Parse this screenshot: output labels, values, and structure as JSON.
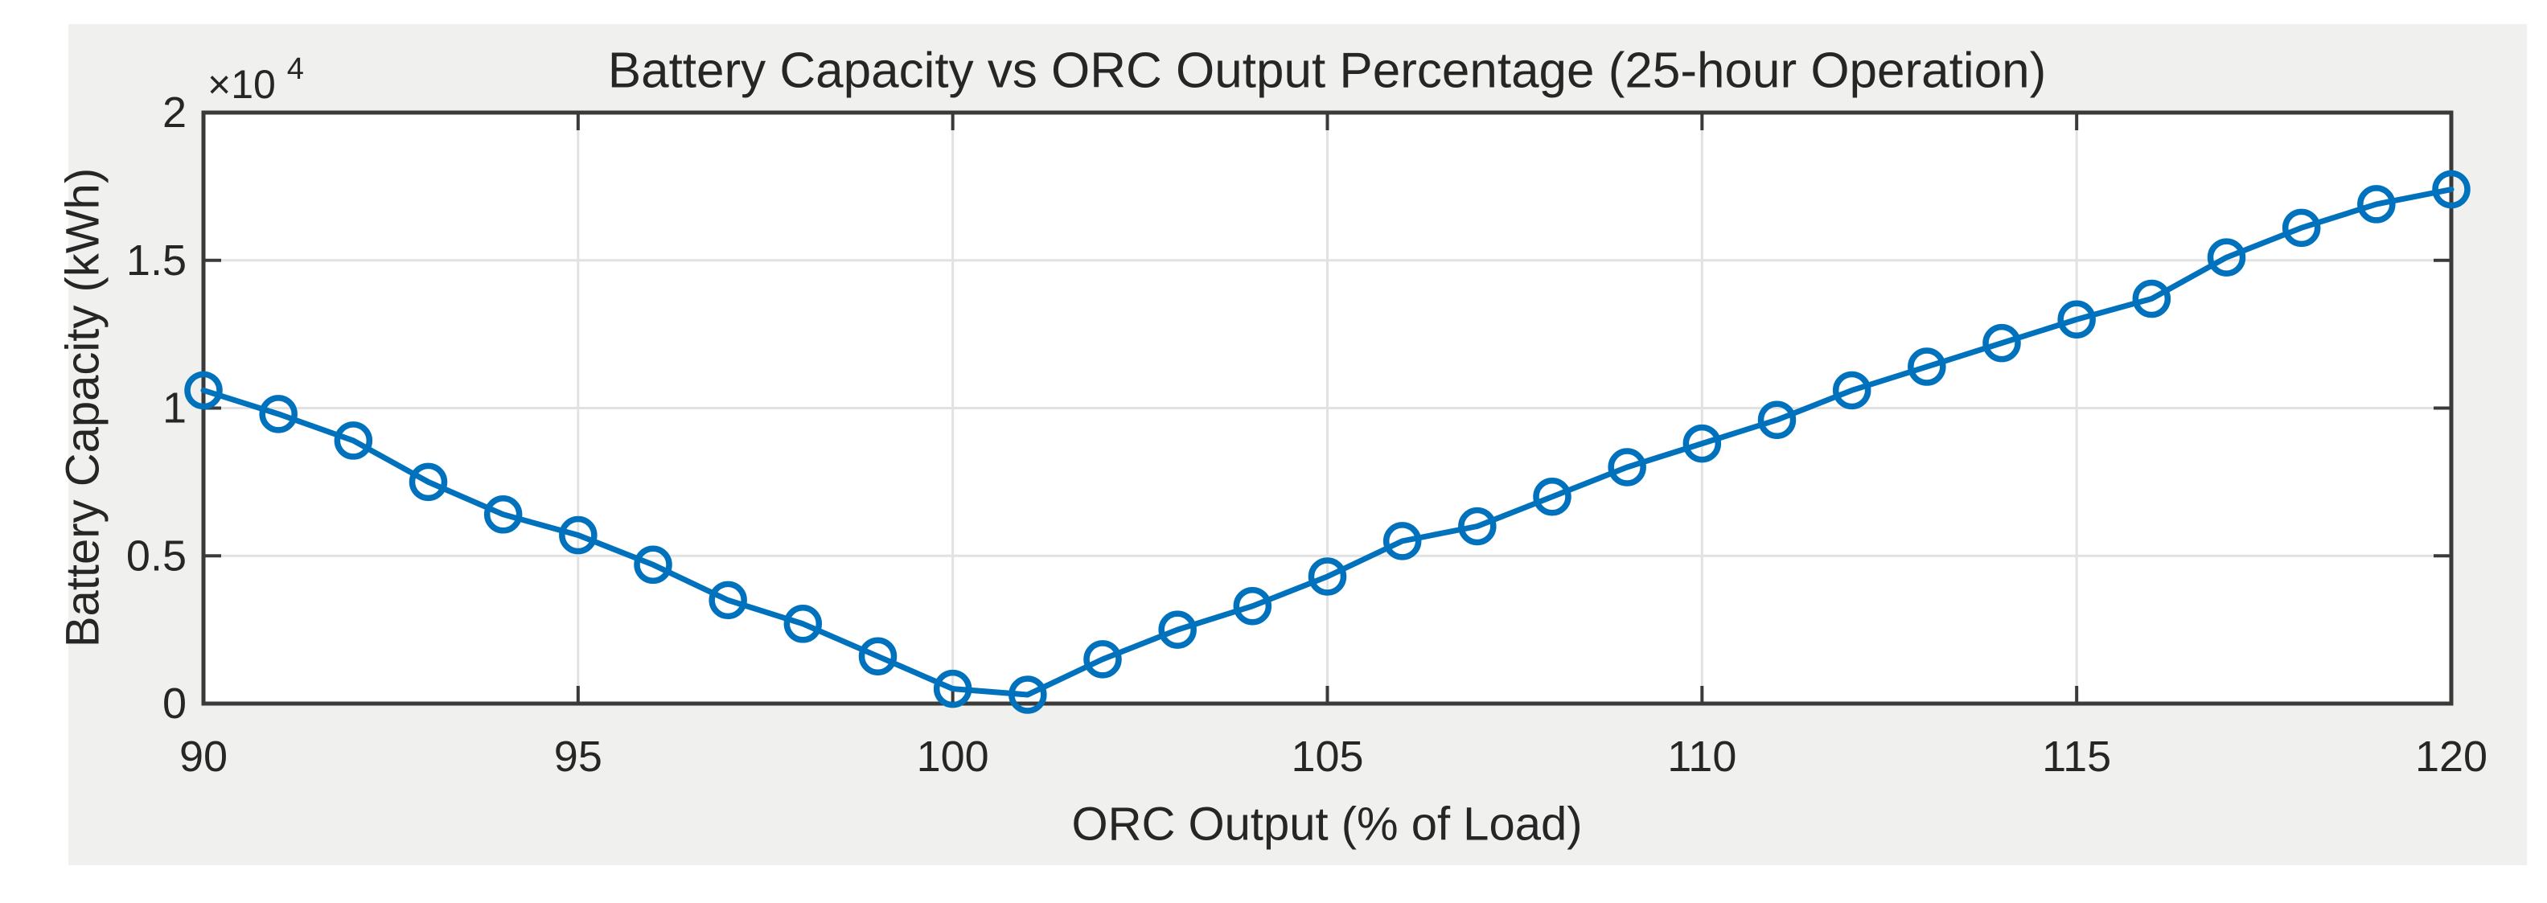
{
  "figure": {
    "title": "Battery Capacity vs ORC Output Percentage (25-hour Operation)"
  },
  "colors": {
    "page_bg": "#ffffff",
    "figure_bg": "#f0f0ee",
    "plot_bg": "#ffffff",
    "axis": "#3a3a3a",
    "grid": "#e2e2e2",
    "text": "#262626",
    "line": "#0072BD"
  },
  "chart_data": {
    "type": "line",
    "title": "Battery Capacity vs ORC Output Percentage (25-hour Operation)",
    "xlabel": "ORC Output (% of Load)",
    "ylabel": "Battery Capacity (kWh)",
    "legend": null,
    "grid": true,
    "marker": "open-circle",
    "line_color": "#0072BD",
    "xlim": [
      90,
      120
    ],
    "ylim": [
      0,
      20000
    ],
    "x_ticks": {
      "values": [
        90,
        95,
        100,
        105,
        110,
        115,
        120
      ],
      "labels": [
        "90",
        "95",
        "100",
        "105",
        "110",
        "115",
        "120"
      ]
    },
    "y_ticks": {
      "values": [
        0,
        5000,
        10000,
        15000,
        20000
      ],
      "labels": [
        "0",
        "0.5",
        "1",
        "1.5",
        "2"
      ]
    },
    "y_exponent": {
      "base": "×10",
      "power": "4"
    },
    "series": [
      {
        "name": "Battery Capacity (kWh)",
        "x": [
          90,
          91,
          92,
          93,
          94,
          95,
          96,
          97,
          98,
          99,
          100,
          101,
          102,
          103,
          104,
          105,
          106,
          107,
          108,
          109,
          110,
          111,
          112,
          113,
          114,
          115,
          116,
          117,
          118,
          119,
          120
        ],
        "values": [
          10600,
          9800,
          8900,
          7500,
          6400,
          5700,
          4700,
          3500,
          2700,
          1600,
          500,
          300,
          1500,
          2500,
          3300,
          4300,
          5500,
          6000,
          7000,
          8000,
          8800,
          9600,
          10600,
          11400,
          12200,
          13000,
          13700,
          15100,
          16100,
          16900,
          17400
        ]
      }
    ]
  }
}
